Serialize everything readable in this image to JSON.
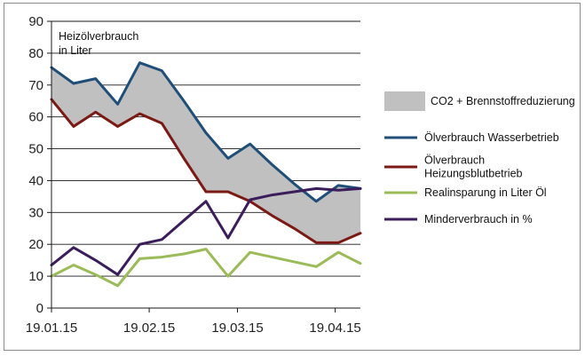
{
  "chart_data": {
    "type": "line",
    "title": "",
    "inner_title_lines": [
      "Heizölverbrauch",
      "in Liter"
    ],
    "xlabel": "",
    "ylabel": "",
    "ylim": [
      0,
      90
    ],
    "yticks": [
      0,
      10,
      20,
      30,
      40,
      50,
      60,
      70,
      80,
      90
    ],
    "x_dates": [
      "2015-01-19",
      "2015-01-26",
      "2015-02-02",
      "2015-02-09",
      "2015-02-16",
      "2015-02-23",
      "2015-03-02",
      "2015-03-09",
      "2015-03-16",
      "2015-03-23",
      "2015-03-30",
      "2015-04-06",
      "2015-04-13",
      "2015-04-20",
      "2015-04-27"
    ],
    "x_tick_labels": [
      "19.01.15",
      "19.02.15",
      "19.03.15",
      "19.04.15"
    ],
    "x_tick_dates": [
      "2015-01-19",
      "2015-02-19",
      "2015-03-19",
      "2015-04-19"
    ],
    "x_range": [
      "2015-01-19",
      "2015-04-27"
    ],
    "grid": "horizontal",
    "legend_position": "right",
    "area": {
      "name": "CO2 + Brennstoffreduzierung",
      "color": "#c0c0c0",
      "between": [
        "Ölverbrauch Wasserbetrieb",
        "Ölverbrauch Heizungsblutbetrieb"
      ]
    },
    "series": [
      {
        "name": "Ölverbrauch Wasserbetrieb",
        "color": "#1f4e79",
        "values": [
          75.5,
          70.5,
          72,
          64,
          77,
          74.5,
          65,
          55,
          47,
          51.5,
          45,
          39,
          33.5,
          38.5,
          37.5
        ]
      },
      {
        "name": "Ölverbrauch Heizungsblutbetrieb",
        "color": "#7b1a14",
        "values": [
          65.5,
          57,
          61.5,
          57,
          61,
          58,
          47,
          36.5,
          36.5,
          33.5,
          29,
          25,
          20.5,
          20.5,
          23.5
        ]
      },
      {
        "name": "Realinsparung in Liter Öl",
        "color": "#9bbb59",
        "values": [
          10,
          13.5,
          10.5,
          7,
          15.5,
          16,
          17,
          18.5,
          10,
          17.5,
          16,
          14.5,
          13,
          17.5,
          14
        ]
      },
      {
        "name": "Minderverbrauch in %",
        "color": "#3b1d5c",
        "values": [
          13.5,
          19,
          15,
          10.5,
          20,
          21.5,
          27.5,
          33.5,
          22,
          34,
          35.5,
          36.5,
          37.5,
          37,
          37.5
        ]
      }
    ],
    "legend_entries": [
      {
        "label_lines": [
          "CO2 + Brennstoffreduzierung"
        ],
        "kind": "area",
        "color": "#c0c0c0"
      },
      {
        "label_lines": [
          "Ölverbrauch Wasserbetrieb"
        ],
        "kind": "line",
        "color": "#1f4e79"
      },
      {
        "label_lines": [
          "Ölverbrauch",
          "Heizungsblutbetrieb"
        ],
        "kind": "line",
        "color": "#7b1a14"
      },
      {
        "label_lines": [
          "Realinsparung in Liter Öl"
        ],
        "kind": "line",
        "color": "#9bbb59"
      },
      {
        "label_lines": [
          "Minderverbrauch in %"
        ],
        "kind": "line",
        "color": "#3b1d5c"
      }
    ]
  }
}
